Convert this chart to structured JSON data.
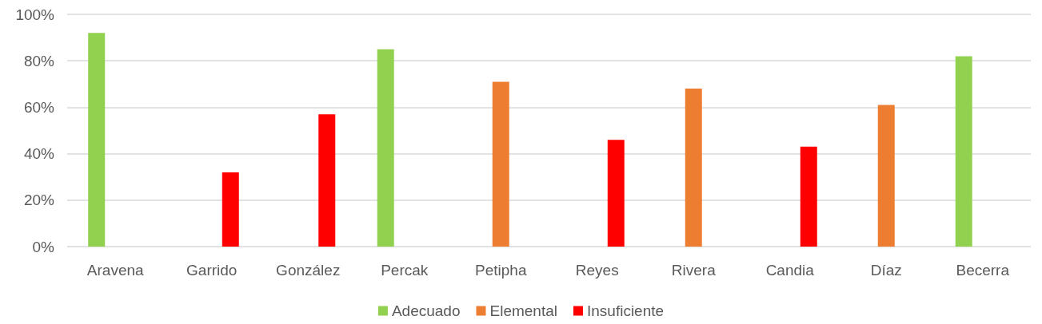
{
  "chart_data": {
    "type": "bar",
    "categories": [
      "Aravena",
      "Garrido",
      "González",
      "Percak",
      "Petipha",
      "Reyes",
      "Rivera",
      "Candia",
      "Díaz",
      "Becerra"
    ],
    "series": [
      {
        "name": "Adecuado",
        "color": "#92d050",
        "values": [
          92,
          null,
          null,
          85,
          null,
          null,
          null,
          null,
          null,
          82
        ]
      },
      {
        "name": "Elemental",
        "color": "#ed7d31",
        "values": [
          null,
          null,
          null,
          null,
          71,
          null,
          68,
          null,
          61,
          null
        ]
      },
      {
        "name": "Insuficiente",
        "color": "#ff0000",
        "values": [
          null,
          32,
          57,
          null,
          null,
          46,
          null,
          43,
          null,
          null
        ]
      }
    ],
    "ylim": [
      0,
      100
    ],
    "yticks": [
      {
        "value": 0,
        "label": "0%"
      },
      {
        "value": 20,
        "label": "20%"
      },
      {
        "value": 40,
        "label": "40%"
      },
      {
        "value": 60,
        "label": "60%"
      },
      {
        "value": 80,
        "label": "80%"
      },
      {
        "value": 100,
        "label": "100%"
      }
    ],
    "grid": "y",
    "legend": "bottom"
  }
}
